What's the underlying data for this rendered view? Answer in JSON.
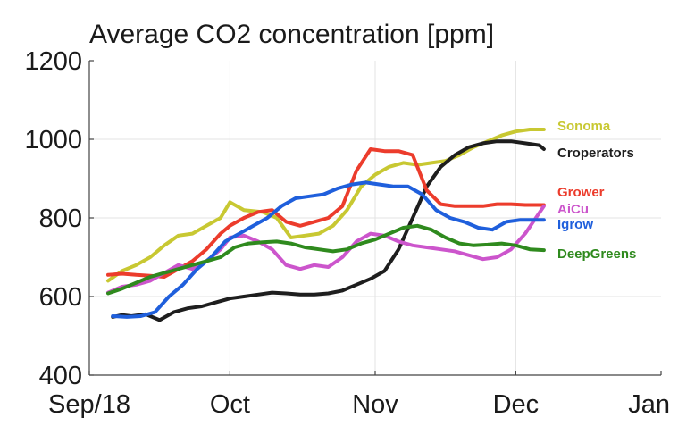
{
  "chart_data": {
    "type": "line",
    "title": "Average CO2 concentration [ppm]",
    "xlabel": "",
    "ylabel": "",
    "x_axis": "date",
    "xlim": [
      "2018-09-01",
      "2019-01-01"
    ],
    "ylim": [
      400,
      1200
    ],
    "y_ticks": [
      400,
      600,
      800,
      1000,
      1200
    ],
    "x_ticks": [
      {
        "date": "2018-09-01",
        "label": "Sep/18"
      },
      {
        "date": "2018-10-01",
        "label": "Oct"
      },
      {
        "date": "2018-11-01",
        "label": "Nov"
      },
      {
        "date": "2018-12-01",
        "label": "Dec"
      },
      {
        "date": "2019-01-01",
        "label": "Jan"
      }
    ],
    "grid": true,
    "legend": "right",
    "series": [
      {
        "name": "Sonoma",
        "color": "#c8c832",
        "x": [
          "2018-09-05",
          "2018-09-08",
          "2018-09-11",
          "2018-09-14",
          "2018-09-17",
          "2018-09-20",
          "2018-09-23",
          "2018-09-26",
          "2018-09-29",
          "2018-10-01",
          "2018-10-04",
          "2018-10-08",
          "2018-10-11",
          "2018-10-14",
          "2018-10-17",
          "2018-10-20",
          "2018-10-23",
          "2018-10-26",
          "2018-10-29",
          "2018-11-01",
          "2018-11-04",
          "2018-11-07",
          "2018-11-10",
          "2018-11-13",
          "2018-11-16",
          "2018-11-19",
          "2018-11-22",
          "2018-11-25",
          "2018-11-28",
          "2018-12-01",
          "2018-12-04",
          "2018-12-07"
        ],
        "values": [
          640,
          665,
          680,
          700,
          730,
          755,
          760,
          780,
          800,
          840,
          820,
          815,
          800,
          750,
          755,
          760,
          780,
          820,
          880,
          910,
          930,
          940,
          935,
          940,
          945,
          960,
          980,
          995,
          1010,
          1020,
          1025,
          1025
        ]
      },
      {
        "name": "Croperators",
        "color": "#1e1e1e",
        "x": [
          "2018-09-06",
          "2018-09-08",
          "2018-09-10",
          "2018-09-13",
          "2018-09-16",
          "2018-09-19",
          "2018-09-22",
          "2018-09-25",
          "2018-09-28",
          "2018-10-01",
          "2018-10-04",
          "2018-10-07",
          "2018-10-10",
          "2018-10-13",
          "2018-10-16",
          "2018-10-19",
          "2018-10-22",
          "2018-10-25",
          "2018-10-28",
          "2018-10-31",
          "2018-11-03",
          "2018-11-06",
          "2018-11-09",
          "2018-11-12",
          "2018-11-15",
          "2018-11-18",
          "2018-11-21",
          "2018-11-24",
          "2018-11-27",
          "2018-11-30",
          "2018-12-03",
          "2018-12-06",
          "2018-12-07"
        ],
        "values": [
          548,
          553,
          550,
          555,
          540,
          560,
          570,
          575,
          585,
          595,
          600,
          605,
          610,
          608,
          605,
          605,
          608,
          615,
          630,
          645,
          665,
          720,
          800,
          880,
          930,
          960,
          980,
          990,
          995,
          995,
          990,
          985,
          975
        ]
      },
      {
        "name": "Grower",
        "color": "#ec3c2c",
        "x": [
          "2018-09-05",
          "2018-09-08",
          "2018-09-11",
          "2018-09-14",
          "2018-09-17",
          "2018-09-20",
          "2018-09-23",
          "2018-09-26",
          "2018-09-29",
          "2018-10-01",
          "2018-10-04",
          "2018-10-07",
          "2018-10-10",
          "2018-10-13",
          "2018-10-16",
          "2018-10-19",
          "2018-10-22",
          "2018-10-25",
          "2018-10-28",
          "2018-10-31",
          "2018-11-03",
          "2018-11-06",
          "2018-11-09",
          "2018-11-12",
          "2018-11-15",
          "2018-11-18",
          "2018-11-21",
          "2018-11-24",
          "2018-11-27",
          "2018-11-30",
          "2018-12-03",
          "2018-12-07"
        ],
        "values": [
          655,
          658,
          655,
          653,
          650,
          670,
          690,
          720,
          760,
          780,
          800,
          815,
          820,
          790,
          780,
          790,
          800,
          830,
          920,
          975,
          970,
          970,
          960,
          870,
          835,
          830,
          830,
          830,
          835,
          835,
          833,
          833
        ]
      },
      {
        "name": "AiCu",
        "color": "#cc55cc",
        "x": [
          "2018-09-05",
          "2018-09-08",
          "2018-09-11",
          "2018-09-14",
          "2018-09-17",
          "2018-09-20",
          "2018-09-23",
          "2018-09-26",
          "2018-09-29",
          "2018-10-01",
          "2018-10-04",
          "2018-10-07",
          "2018-10-10",
          "2018-10-13",
          "2018-10-16",
          "2018-10-19",
          "2018-10-22",
          "2018-10-25",
          "2018-10-28",
          "2018-10-31",
          "2018-11-03",
          "2018-11-06",
          "2018-11-09",
          "2018-11-12",
          "2018-11-15",
          "2018-11-18",
          "2018-11-21",
          "2018-11-24",
          "2018-11-27",
          "2018-11-30",
          "2018-12-03",
          "2018-12-07"
        ],
        "values": [
          610,
          625,
          630,
          640,
          660,
          680,
          670,
          690,
          720,
          750,
          755,
          740,
          720,
          680,
          670,
          680,
          675,
          700,
          740,
          760,
          755,
          740,
          730,
          725,
          720,
          715,
          705,
          695,
          700,
          720,
          760,
          830
        ]
      },
      {
        "name": "Igrow",
        "color": "#1f5fdc",
        "x": [
          "2018-09-06",
          "2018-09-09",
          "2018-09-12",
          "2018-09-15",
          "2018-09-18",
          "2018-09-21",
          "2018-09-24",
          "2018-09-27",
          "2018-09-30",
          "2018-10-03",
          "2018-10-06",
          "2018-10-09",
          "2018-10-12",
          "2018-10-15",
          "2018-10-18",
          "2018-10-21",
          "2018-10-24",
          "2018-10-27",
          "2018-10-30",
          "2018-11-02",
          "2018-11-05",
          "2018-11-08",
          "2018-11-11",
          "2018-11-14",
          "2018-11-17",
          "2018-11-20",
          "2018-11-23",
          "2018-11-26",
          "2018-11-29",
          "2018-12-02",
          "2018-12-05",
          "2018-12-07"
        ],
        "values": [
          550,
          548,
          550,
          560,
          600,
          630,
          670,
          700,
          740,
          760,
          780,
          800,
          830,
          850,
          855,
          860,
          875,
          885,
          890,
          885,
          880,
          880,
          860,
          820,
          800,
          790,
          775,
          770,
          790,
          795,
          795,
          795
        ]
      },
      {
        "name": "DeepGreens",
        "color": "#2f8a1e",
        "x": [
          "2018-09-05",
          "2018-09-08",
          "2018-09-11",
          "2018-09-14",
          "2018-09-17",
          "2018-09-20",
          "2018-09-23",
          "2018-09-26",
          "2018-09-29",
          "2018-10-02",
          "2018-10-05",
          "2018-10-08",
          "2018-10-11",
          "2018-10-14",
          "2018-10-17",
          "2018-10-20",
          "2018-10-23",
          "2018-10-26",
          "2018-10-29",
          "2018-11-01",
          "2018-11-04",
          "2018-11-07",
          "2018-11-10",
          "2018-11-13",
          "2018-11-16",
          "2018-11-19",
          "2018-11-22",
          "2018-11-25",
          "2018-11-28",
          "2018-12-01",
          "2018-12-04",
          "2018-12-07"
        ],
        "values": [
          608,
          620,
          635,
          650,
          660,
          670,
          680,
          690,
          700,
          725,
          735,
          738,
          740,
          735,
          725,
          720,
          715,
          720,
          735,
          745,
          760,
          775,
          780,
          770,
          750,
          735,
          730,
          732,
          735,
          730,
          720,
          718
        ]
      }
    ]
  }
}
